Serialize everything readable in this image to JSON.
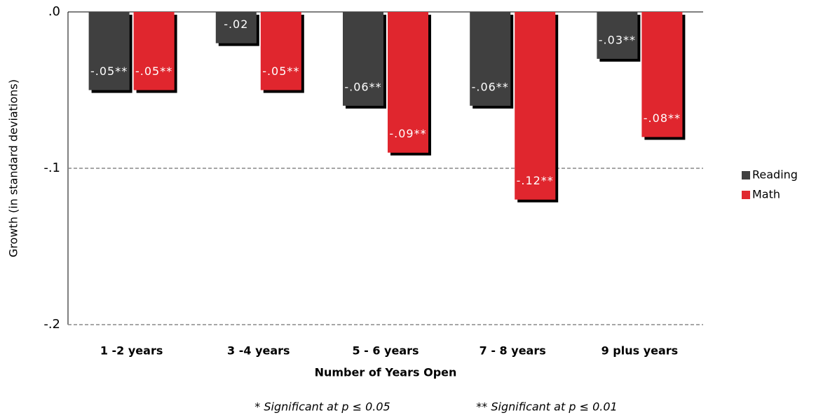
{
  "chart_data": {
    "type": "bar",
    "y_label": "Growth (in standard deviations)",
    "x_label": "Number of Years Open",
    "categories": [
      "1 -2 years",
      "3 -4 years",
      "5 - 6 years",
      "7 - 8 years",
      "9 plus years"
    ],
    "series": [
      {
        "name": "Reading",
        "color": "#404040",
        "values": [
          -0.05,
          -0.02,
          -0.06,
          -0.06,
          -0.03
        ],
        "value_labels": [
          "-.05**",
          "-.02",
          "-.06**",
          "-.06**",
          "-.03**"
        ]
      },
      {
        "name": "Math",
        "color": "#e0282f",
        "values": [
          -0.05,
          -0.05,
          -0.09,
          -0.12,
          -0.08
        ],
        "value_labels": [
          "-.05**",
          "-.05**",
          "-.09**",
          "-.12**",
          "-.08**"
        ]
      }
    ],
    "ylim": [
      -0.2,
      0
    ],
    "yticks": [
      {
        "value": 0,
        "label": ".0"
      },
      {
        "value": -0.1,
        "label": "-.1"
      },
      {
        "value": -0.2,
        "label": "-.2"
      }
    ],
    "grid": true,
    "legend": "right",
    "notes": [
      "* Significant at p ≤ 0.05",
      "** Significant at p ≤ 0.01"
    ]
  }
}
